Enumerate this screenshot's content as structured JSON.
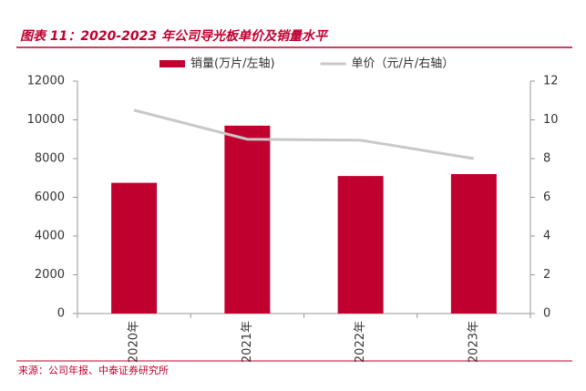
{
  "chart_data": {
    "type": "bar_line",
    "title": "图表 11：2020-2023 年公司导光板单价及销量水平",
    "source": "来源：公司年报、中泰证券研究所",
    "categories": [
      "2020年",
      "2021年",
      "2022年",
      "2023年"
    ],
    "series": [
      {
        "name": "销量(万片/左轴)",
        "type": "bar",
        "color": "#c0002f",
        "values": [
          6750,
          9700,
          7100,
          7200
        ]
      },
      {
        "name": "单价（元/片/右轴）",
        "type": "line",
        "axis": "y2",
        "color": "#c8c8c8",
        "values": [
          10.5,
          9.0,
          8.95,
          8.0
        ]
      }
    ],
    "ylim": [
      0,
      12000
    ],
    "yticks": [
      0,
      2000,
      4000,
      6000,
      8000,
      10000,
      12000
    ],
    "y2lim": [
      0,
      12
    ],
    "y2ticks": [
      0,
      2,
      4,
      6,
      8,
      10,
      12
    ],
    "legend": "top"
  }
}
